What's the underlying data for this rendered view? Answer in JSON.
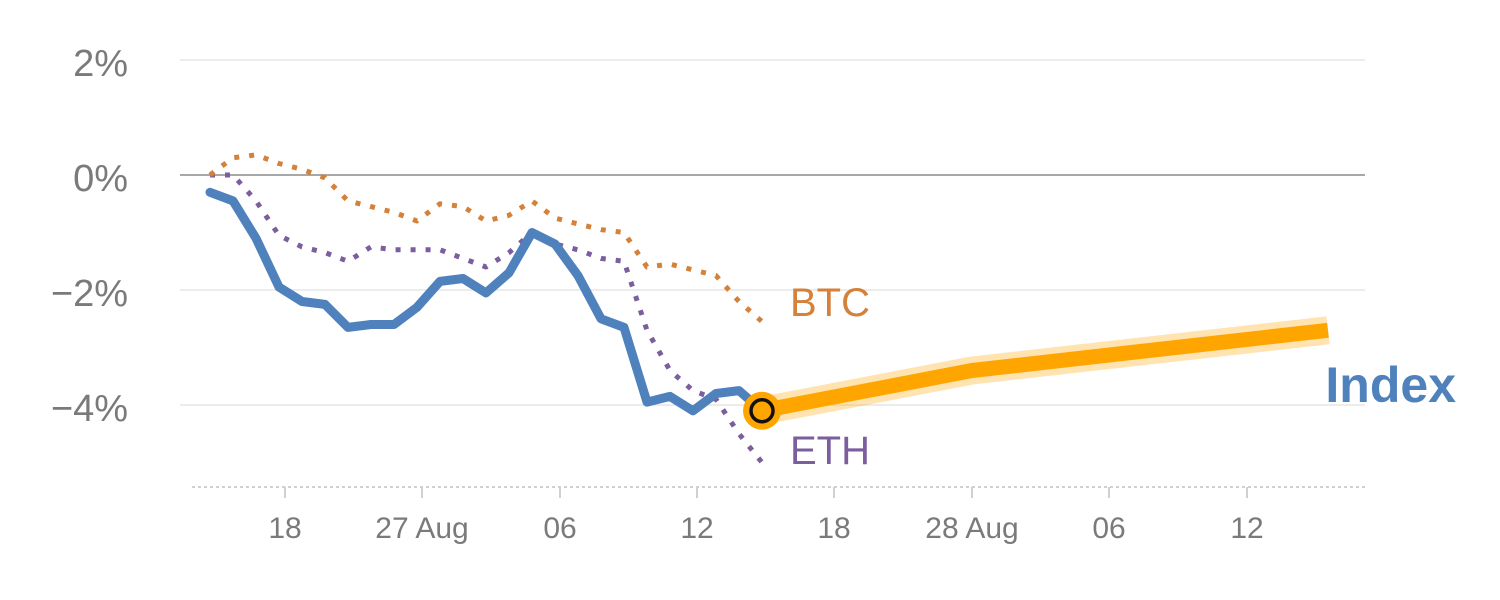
{
  "chart_data": {
    "type": "line",
    "ylim": [
      -5.5,
      2.5
    ],
    "y_ticks": [
      2,
      0,
      -2,
      -4
    ],
    "y_tick_labels": [
      "2%",
      "0%",
      "−2%",
      "−4%"
    ],
    "x_tick_labels": [
      "18",
      "27 Aug",
      "06",
      "12",
      "18",
      "28 Aug",
      "06",
      "12"
    ],
    "grid": true,
    "colors": {
      "index": "#4f81bd",
      "btc": "#d4813a",
      "eth": "#7c5e9e",
      "forecast": "#ffa500",
      "grid": "#e6e6e6",
      "zero_line": "#8c8c8c",
      "axis": "#d0d0d0"
    },
    "series": [
      {
        "name": "Index",
        "style": "solid",
        "values": [
          -0.3,
          -0.45,
          -1.1,
          -1.95,
          -2.2,
          -2.25,
          -2.65,
          -2.6,
          -2.6,
          -2.3,
          -1.85,
          -1.8,
          -2.05,
          -1.7,
          -1.0,
          -1.2,
          -1.75,
          -2.5,
          -2.65,
          -3.95,
          -3.85,
          -4.1,
          -3.8,
          -3.75,
          -4.1
        ]
      },
      {
        "name": "BTC",
        "style": "dotted",
        "values": [
          0.0,
          0.3,
          0.35,
          0.2,
          0.1,
          -0.05,
          -0.45,
          -0.55,
          -0.65,
          -0.8,
          -0.5,
          -0.55,
          -0.8,
          -0.7,
          -0.45,
          -0.75,
          -0.85,
          -0.95,
          -1.0,
          -1.6,
          -1.55,
          -1.65,
          -1.75,
          -2.2,
          -2.55
        ]
      },
      {
        "name": "ETH",
        "style": "dotted",
        "values": [
          0.0,
          0.0,
          -0.45,
          -1.05,
          -1.25,
          -1.35,
          -1.5,
          -1.25,
          -1.3,
          -1.3,
          -1.3,
          -1.45,
          -1.6,
          -1.35,
          -1.0,
          -1.2,
          -1.3,
          -1.45,
          -1.5,
          -2.7,
          -3.4,
          -3.75,
          -3.9,
          -4.5,
          -5.0
        ]
      }
    ],
    "forecast": {
      "values": [
        -4.1,
        -3.4,
        -2.7
      ]
    },
    "end_marker_value": -4.1
  }
}
